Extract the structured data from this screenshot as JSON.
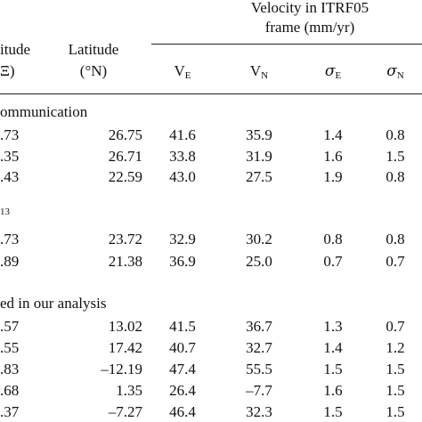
{
  "header": {
    "velocity_title_line1": "Velocity in ITRF05",
    "velocity_title_line2": "frame (mm/yr)",
    "longitude_line1": "itude",
    "longitude_line2": "Ξ)",
    "latitude_line1": "Latitude",
    "latitude_line2": "(°N)",
    "ve_main": "V",
    "ve_sub": "E",
    "vn_main": "V",
    "vn_sub": "N",
    "se_main": "σ",
    "se_sub": "E",
    "sn_main": "σ",
    "sn_sub": "N"
  },
  "sections": [
    {
      "title": "ommunication",
      "rows": [
        {
          "lon": ".73",
          "lat": "26.75",
          "ve": "41.6",
          "vn": "35.9",
          "se": "1.4",
          "sn": "0.8"
        },
        {
          "lon": ".35",
          "lat": "26.71",
          "ve": "33.8",
          "vn": "31.9",
          "se": "1.6",
          "sn": "1.5"
        },
        {
          "lon": ".43",
          "lat": "22.59",
          "ve": "43.0",
          "vn": "27.5",
          "se": "1.9",
          "sn": "0.8"
        }
      ]
    },
    {
      "title": "13",
      "rows": [
        {
          "lon": ".73",
          "lat": "23.72",
          "ve": "32.9",
          "vn": "30.2",
          "se": "0.8",
          "sn": "0.8"
        },
        {
          "lon": ".89",
          "lat": "21.38",
          "ve": "36.9",
          "vn": "25.0",
          "se": "0.7",
          "sn": "0.7"
        }
      ]
    },
    {
      "title": "ed in our analysis",
      "rows": [
        {
          "lon": ".57",
          "lat": "13.02",
          "ve": "41.5",
          "vn": "36.7",
          "se": "1.3",
          "sn": "0.7"
        },
        {
          "lon": ".55",
          "lat": "17.42",
          "ve": "40.7",
          "vn": "32.7",
          "se": "1.4",
          "sn": "1.2"
        },
        {
          "lon": ".83",
          "lat": "–12.19",
          "ve": "47.4",
          "vn": "55.5",
          "se": "1.5",
          "sn": "1.5"
        },
        {
          "lon": ".68",
          "lat": "1.35",
          "ve": "26.4",
          "vn": "–7.7",
          "se": "1.6",
          "sn": "1.5"
        },
        {
          "lon": ".37",
          "lat": "–7.27",
          "ve": "46.4",
          "vn": "32.3",
          "se": "1.5",
          "sn": "1.5"
        }
      ]
    }
  ]
}
